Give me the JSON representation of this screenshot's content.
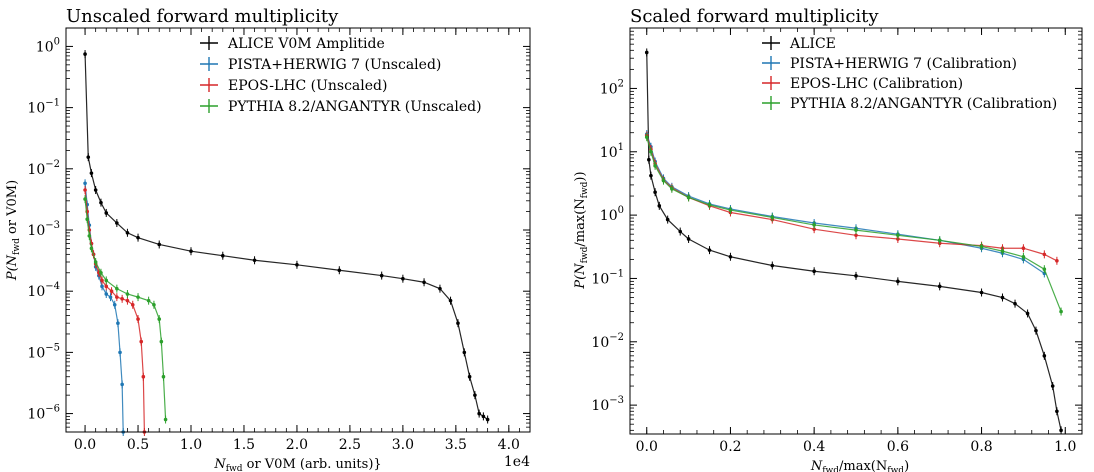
{
  "chart_data": [
    {
      "type": "scatter",
      "title": "Unscaled forward multiplicity",
      "xlabel": {
        "main": "N",
        "sub": "fwd",
        "rest": " or V0M (arb. units)}"
      },
      "ylabel": {
        "pre": "P(N",
        "sub": "fwd",
        "rest": " or V0M)"
      },
      "x_offset_label": "1e4",
      "xlim": [
        -0.18,
        4.2
      ],
      "ylim": [
        5e-07,
        2
      ],
      "log_y": true,
      "legend_position": "top-right",
      "x_ticks": [
        0.0,
        0.5,
        1.0,
        1.5,
        2.0,
        2.5,
        3.0,
        3.5,
        4.0
      ],
      "x_tick_labels": [
        "0.0",
        "0.5",
        "1.0",
        "1.5",
        "2.0",
        "2.5",
        "3.0",
        "3.5",
        "4.0"
      ],
      "y_ticks": [
        {
          "value": 1,
          "base": "10",
          "exp": "0"
        },
        {
          "value": 0.1,
          "base": "10",
          "exp": "−1"
        },
        {
          "value": 0.01,
          "base": "10",
          "exp": "−2"
        },
        {
          "value": 0.001,
          "base": "10",
          "exp": "−3"
        },
        {
          "value": 0.0001,
          "base": "10",
          "exp": "−4"
        },
        {
          "value": 1e-05,
          "base": "10",
          "exp": "−5"
        },
        {
          "value": 1e-06,
          "base": "10",
          "exp": "−6"
        }
      ],
      "series": [
        {
          "name": "ALICE V0M Amplitide",
          "color": "#000000",
          "x": [
            0.0,
            0.03,
            0.06,
            0.1,
            0.15,
            0.2,
            0.3,
            0.4,
            0.5,
            0.7,
            1.0,
            1.3,
            1.6,
            2.0,
            2.4,
            2.8,
            3.0,
            3.2,
            3.35,
            3.45,
            3.52,
            3.58,
            3.63,
            3.68,
            3.72,
            3.76,
            3.8
          ],
          "y": [
            0.75,
            0.0155,
            0.0085,
            0.0045,
            0.0028,
            0.0019,
            0.0013,
            0.0009,
            0.00075,
            0.00058,
            0.00045,
            0.00038,
            0.00032,
            0.00027,
            0.00022,
            0.00018,
            0.00016,
            0.00014,
            0.00011,
            7e-05,
            3e-05,
            1e-05,
            4e-06,
            2e-06,
            1e-06,
            9e-07,
            8e-07
          ]
        },
        {
          "name": "PISTA+HERWIG 7 (Unscaled)",
          "color": "#1f77b4",
          "x": [
            0.0,
            0.02,
            0.04,
            0.06,
            0.08,
            0.1,
            0.13,
            0.16,
            0.2,
            0.24,
            0.28,
            0.31,
            0.33,
            0.35,
            0.36
          ],
          "y": [
            0.0058,
            0.0026,
            0.0012,
            0.0006,
            0.0004,
            0.00025,
            0.00018,
            0.00012,
            9e-05,
            8e-05,
            6e-05,
            3e-05,
            1e-05,
            3e-06,
            5e-07
          ]
        },
        {
          "name": "EPOS-LHC (Unscaled)",
          "color": "#d62728",
          "x": [
            0.0,
            0.02,
            0.04,
            0.06,
            0.08,
            0.1,
            0.13,
            0.16,
            0.2,
            0.25,
            0.3,
            0.35,
            0.4,
            0.45,
            0.5,
            0.53,
            0.55,
            0.56
          ],
          "y": [
            0.0045,
            0.002,
            0.001,
            0.0006,
            0.0004,
            0.00028,
            0.0002,
            0.00015,
            0.00012,
            0.0001,
            8e-05,
            7.5e-05,
            7e-05,
            6e-05,
            3.5e-05,
            1.5e-05,
            4e-06,
            5e-07
          ]
        },
        {
          "name": "PYTHIA 8.2/ANGANTYR (Unscaled)",
          "color": "#2ca02c",
          "x": [
            0.0,
            0.02,
            0.04,
            0.06,
            0.1,
            0.15,
            0.2,
            0.3,
            0.4,
            0.5,
            0.6,
            0.65,
            0.7,
            0.72,
            0.74,
            0.76
          ],
          "y": [
            0.0032,
            0.0015,
            0.0008,
            0.0005,
            0.0003,
            0.0002,
            0.00015,
            0.00011,
            9e-05,
            8e-05,
            7e-05,
            6e-05,
            3.5e-05,
            1.5e-05,
            4e-06,
            8e-07
          ]
        }
      ]
    },
    {
      "type": "scatter",
      "title": "Scaled forward multiplicity",
      "xlabel": {
        "main": "N",
        "sub": "fwd",
        "rest": "/max(N",
        "sub2": "fwd",
        "rest2": ")"
      },
      "ylabel": {
        "pre": "P(N",
        "sub": "fwd",
        "rest": "/max(N",
        "sub2": "fwd",
        "rest2": "))"
      },
      "xlim": [
        -0.04,
        1.04
      ],
      "ylim": [
        0.00035,
        900
      ],
      "log_y": true,
      "legend_position": "top-right",
      "x_ticks": [
        0.0,
        0.2,
        0.4,
        0.6,
        0.8,
        1.0
      ],
      "x_tick_labels": [
        "0.0",
        "0.2",
        "0.4",
        "0.6",
        "0.8",
        "1.0"
      ],
      "y_ticks": [
        {
          "value": 100,
          "base": "10",
          "exp": "2"
        },
        {
          "value": 10,
          "base": "10",
          "exp": "1"
        },
        {
          "value": 1,
          "base": "10",
          "exp": "0"
        },
        {
          "value": 0.1,
          "base": "10",
          "exp": "−1"
        },
        {
          "value": 0.01,
          "base": "10",
          "exp": "−2"
        },
        {
          "value": 0.001,
          "base": "10",
          "exp": "−3"
        }
      ],
      "series": [
        {
          "name": "ALICE",
          "color": "#000000",
          "x": [
            0.0,
            0.005,
            0.01,
            0.02,
            0.03,
            0.05,
            0.08,
            0.1,
            0.15,
            0.2,
            0.3,
            0.4,
            0.5,
            0.6,
            0.7,
            0.8,
            0.85,
            0.88,
            0.91,
            0.93,
            0.95,
            0.97,
            0.98,
            0.99
          ],
          "y": [
            370,
            7.5,
            4.2,
            2.3,
            1.4,
            0.85,
            0.55,
            0.42,
            0.28,
            0.22,
            0.16,
            0.13,
            0.11,
            0.09,
            0.075,
            0.06,
            0.05,
            0.04,
            0.028,
            0.015,
            0.006,
            0.002,
            0.0008,
            0.0004
          ]
        },
        {
          "name": "PISTA+HERWIG 7 (Calibration)",
          "color": "#1f77b4",
          "x": [
            0.0,
            0.01,
            0.02,
            0.04,
            0.06,
            0.1,
            0.15,
            0.2,
            0.3,
            0.4,
            0.5,
            0.6,
            0.7,
            0.8,
            0.85,
            0.9,
            0.95
          ],
          "y": [
            19,
            12,
            7,
            3.8,
            2.8,
            2.0,
            1.5,
            1.25,
            0.95,
            0.75,
            0.62,
            0.5,
            0.4,
            0.3,
            0.25,
            0.2,
            0.12
          ]
        },
        {
          "name": "EPOS-LHC (Calibration)",
          "color": "#d62728",
          "x": [
            0.0,
            0.01,
            0.02,
            0.04,
            0.06,
            0.1,
            0.15,
            0.2,
            0.3,
            0.4,
            0.5,
            0.6,
            0.7,
            0.8,
            0.85,
            0.9,
            0.95,
            0.98
          ],
          "y": [
            18,
            11,
            6.5,
            3.6,
            2.7,
            1.9,
            1.4,
            1.1,
            0.85,
            0.6,
            0.48,
            0.42,
            0.36,
            0.33,
            0.3,
            0.3,
            0.24,
            0.19
          ]
        },
        {
          "name": "PYTHIA 8.2/ANGANTYR (Calibration)",
          "color": "#2ca02c",
          "x": [
            0.0,
            0.01,
            0.02,
            0.04,
            0.06,
            0.1,
            0.15,
            0.2,
            0.3,
            0.4,
            0.5,
            0.6,
            0.7,
            0.8,
            0.85,
            0.9,
            0.95,
            0.99
          ],
          "y": [
            17,
            10,
            6,
            3.5,
            2.6,
            1.9,
            1.45,
            1.2,
            0.92,
            0.7,
            0.58,
            0.48,
            0.4,
            0.32,
            0.27,
            0.22,
            0.14,
            0.03
          ]
        }
      ]
    }
  ]
}
